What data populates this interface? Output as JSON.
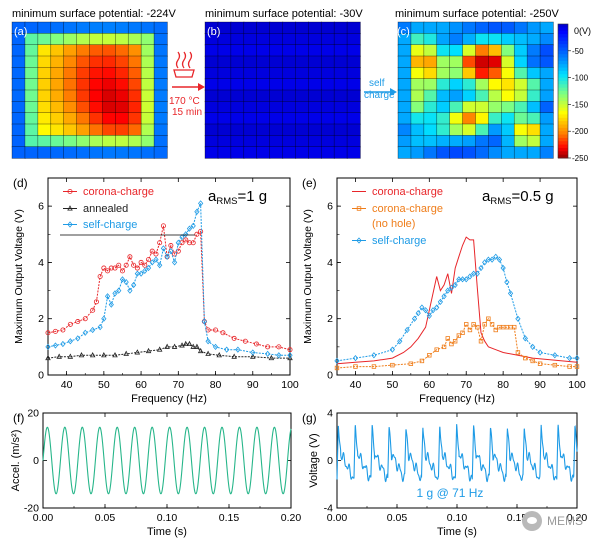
{
  "maps": {
    "a": {
      "label": "(a)",
      "title": "minimum surface potential: -224V"
    },
    "b": {
      "label": "(b)",
      "title": "minimum surface potential: -30V"
    },
    "c": {
      "label": "(c)",
      "title": "minimum surface potential: -250V"
    },
    "anneal_label": [
      "170 °C",
      "15 min"
    ],
    "selfcharge_label": [
      "self",
      "charge"
    ],
    "colorbar": {
      "unit": "0(V)",
      "ticks": [
        "-50",
        "-100",
        "-150",
        "-200",
        "-250"
      ],
      "values": [
        0,
        -50,
        -100,
        -150,
        -200,
        -250
      ],
      "colors": [
        "#00007a",
        "#0000ff",
        "#0080ff",
        "#00e0ff",
        "#80ff80",
        "#ffff00",
        "#ff8000",
        "#ff0000",
        "#800000"
      ]
    }
  },
  "panel_labels": {
    "d": "(d)",
    "e": "(e)",
    "f": "(f)",
    "g": "(g)"
  },
  "colors": {
    "corona": "#e8262a",
    "annealed": "#222222",
    "selfcharge": "#1e9be6",
    "nohole": "#ef7d1a",
    "accel": "#27b68a",
    "voltage": "#1e9be6"
  },
  "chart_data": [
    {
      "type": "line",
      "panel": "(d)",
      "xlabel": "Frequency (Hz)",
      "ylabel": "Maximum Output Voltage (V)",
      "xlim": [
        35,
        100
      ],
      "ylim": [
        0,
        7
      ],
      "xticks": [
        "40",
        "50",
        "60",
        "70",
        "80",
        "90",
        "100"
      ],
      "yticks": [
        "0",
        "2",
        "4",
        "6"
      ],
      "annotation": {
        "main": "a",
        "sub": "RMS",
        "suffix": "=1 g"
      },
      "series": [
        {
          "name": "corona-charge",
          "color": "#e8262a",
          "marker": "circle",
          "x": [
            35,
            37,
            39,
            41,
            43,
            45,
            47,
            48,
            49,
            50,
            51,
            52,
            53,
            54,
            55,
            56,
            57,
            58,
            59,
            60,
            61,
            62,
            63,
            64,
            65,
            66,
            67,
            68,
            69,
            70,
            71,
            72,
            73,
            74,
            75,
            76,
            77,
            78,
            80,
            82,
            85,
            88,
            91,
            94,
            97,
            100
          ],
          "y": [
            1.5,
            1.55,
            1.6,
            1.8,
            1.9,
            2.0,
            2.3,
            2.6,
            3.5,
            3.8,
            3.7,
            3.8,
            3.8,
            3.9,
            3.7,
            3.9,
            4.2,
            3.9,
            3.8,
            4.0,
            3.9,
            4.1,
            4.4,
            4.3,
            4.7,
            5.3,
            4.2,
            4.6,
            4.3,
            4.4,
            4.7,
            4.8,
            4.7,
            4.7,
            5.0,
            5.1,
            1.9,
            1.6,
            1.6,
            1.5,
            1.3,
            1.2,
            1.1,
            1.0,
            1.0,
            0.9
          ]
        },
        {
          "name": "annealed",
          "color": "#222222",
          "marker": "triangle",
          "x": [
            35,
            38,
            41,
            44,
            47,
            50,
            53,
            56,
            59,
            62,
            65,
            67,
            69,
            71,
            72,
            73,
            74,
            75,
            76,
            78,
            81,
            85,
            90,
            95,
            100
          ],
          "y": [
            0.6,
            0.65,
            0.65,
            0.7,
            0.7,
            0.7,
            0.7,
            0.75,
            0.8,
            0.85,
            0.9,
            1.0,
            1.0,
            1.05,
            1.1,
            1.1,
            1.0,
            1.0,
            0.85,
            0.75,
            0.7,
            0.65,
            0.65,
            0.6,
            0.6
          ]
        },
        {
          "name": "self-charge",
          "color": "#1e9be6",
          "marker": "diamond",
          "x": [
            35,
            37,
            39,
            41,
            43,
            45,
            47,
            49,
            50,
            51,
            52,
            53,
            54,
            55,
            56,
            57,
            58,
            59,
            60,
            61,
            62,
            63,
            64,
            65,
            66,
            67,
            68,
            69,
            70,
            71,
            72,
            73,
            74,
            75,
            76,
            77,
            78,
            80,
            83,
            86,
            90,
            94,
            97,
            100
          ],
          "y": [
            1.0,
            1.05,
            1.1,
            1.2,
            1.3,
            1.5,
            1.6,
            1.7,
            2.0,
            2.8,
            2.5,
            2.9,
            3.0,
            3.4,
            3.3,
            3.0,
            3.2,
            3.6,
            3.6,
            3.7,
            3.8,
            4.0,
            4.1,
            3.9,
            4.5,
            4.2,
            4.4,
            4.0,
            4.7,
            4.9,
            5.0,
            5.2,
            5.3,
            5.8,
            6.1,
            1.9,
            1.2,
            1.0,
            0.9,
            0.9,
            0.8,
            0.75,
            0.7,
            0.7
          ]
        }
      ]
    },
    {
      "type": "line",
      "panel": "(e)",
      "xlabel": "Frequency (Hz)",
      "ylabel": "Maximum Output Voltage (V)",
      "xlim": [
        35,
        100
      ],
      "ylim": [
        0,
        7
      ],
      "xticks": [
        "40",
        "50",
        "60",
        "70",
        "80",
        "90",
        "100"
      ],
      "yticks": [
        "0",
        "2",
        "4",
        "6"
      ],
      "annotation": {
        "main": "a",
        "sub": "RMS",
        "suffix": "=0.5 g"
      },
      "series": [
        {
          "name": "corona-charge",
          "color": "#e8262a",
          "marker": "none",
          "x": [
            35,
            40,
            45,
            50,
            53,
            55,
            57,
            59,
            60,
            61,
            62,
            63,
            64,
            65,
            66,
            67,
            68,
            69,
            70,
            71,
            72,
            73,
            74,
            75,
            76,
            78,
            80,
            84,
            88,
            92,
            96,
            100
          ],
          "y": [
            0.4,
            0.45,
            0.5,
            0.6,
            0.8,
            1.0,
            1.3,
            1.7,
            2.3,
            2.9,
            3.5,
            3.0,
            3.2,
            3.6,
            2.9,
            3.8,
            4.2,
            4.6,
            4.9,
            4.8,
            4.8,
            3.1,
            1.5,
            1.2,
            1.0,
            0.9,
            0.8,
            0.7,
            0.6,
            0.55,
            0.5,
            0.45
          ]
        },
        {
          "name": "corona-charge (no hole)",
          "color": "#ef7d1a",
          "marker": "square",
          "x": [
            35,
            40,
            45,
            50,
            55,
            58,
            60,
            62,
            64,
            65,
            66,
            67,
            68,
            69,
            70,
            71,
            72,
            73,
            74,
            75,
            76,
            77,
            78,
            79,
            80,
            81,
            82,
            83,
            84,
            86,
            88,
            90,
            94,
            98,
            100
          ],
          "y": [
            0.25,
            0.3,
            0.3,
            0.35,
            0.4,
            0.5,
            0.7,
            0.9,
            1.0,
            1.3,
            1.1,
            1.2,
            1.4,
            1.5,
            1.8,
            1.6,
            1.8,
            1.7,
            1.2,
            1.8,
            2.0,
            1.8,
            1.6,
            1.7,
            1.7,
            1.7,
            1.7,
            1.7,
            0.8,
            0.6,
            0.5,
            0.4,
            0.35,
            0.3,
            0.3
          ]
        },
        {
          "name": "self-charge",
          "color": "#1e9be6",
          "marker": "diamond",
          "x": [
            35,
            40,
            45,
            50,
            52,
            54,
            56,
            57,
            58,
            59,
            60,
            61,
            62,
            63,
            64,
            65,
            66,
            67,
            68,
            69,
            70,
            71,
            72,
            73,
            74,
            75,
            76,
            77,
            78,
            79,
            80,
            81,
            82,
            84,
            86,
            88,
            90,
            94,
            98,
            100
          ],
          "y": [
            0.5,
            0.6,
            0.7,
            0.9,
            1.2,
            1.6,
            2.0,
            2.2,
            2.4,
            2.3,
            2.1,
            2.3,
            2.4,
            2.6,
            2.8,
            3.0,
            3.1,
            3.2,
            3.4,
            3.4,
            3.4,
            3.5,
            3.6,
            3.6,
            3.8,
            4.0,
            4.1,
            4.1,
            4.2,
            4.1,
            3.8,
            3.3,
            2.9,
            2.0,
            1.3,
            1.0,
            0.8,
            0.7,
            0.6,
            0.6
          ]
        }
      ]
    },
    {
      "type": "line",
      "panel": "(f)",
      "xlabel": "Time (s)",
      "ylabel": "Accel. (m/s²)",
      "xlim": [
        0,
        0.2
      ],
      "ylim": [
        -20,
        20
      ],
      "xticks": [
        "0.00",
        "0.05",
        "0.10",
        "0.15",
        "0.20"
      ],
      "yticks": [
        "-20",
        "0",
        "20"
      ],
      "signal": {
        "kind": "sine",
        "amplitude": 14,
        "frequency_hz": 71,
        "offset": 0,
        "color": "#27b68a"
      }
    },
    {
      "type": "line",
      "panel": "(g)",
      "xlabel": "Time (s)",
      "ylabel": "Voltage (V)",
      "xlim": [
        0,
        0.2
      ],
      "ylim": [
        -4,
        4
      ],
      "xticks": [
        "0.00",
        "0.05",
        "0.10",
        "0.15",
        "0.20"
      ],
      "yticks": [
        "-4",
        "0",
        "4"
      ],
      "annotation": "1 g @ 71 Hz",
      "signal": {
        "kind": "spiky",
        "frequency_hz": 71,
        "peak": 2.9,
        "trough": -1.6,
        "color": "#1e9be6"
      }
    }
  ],
  "watermark": "MEMS"
}
